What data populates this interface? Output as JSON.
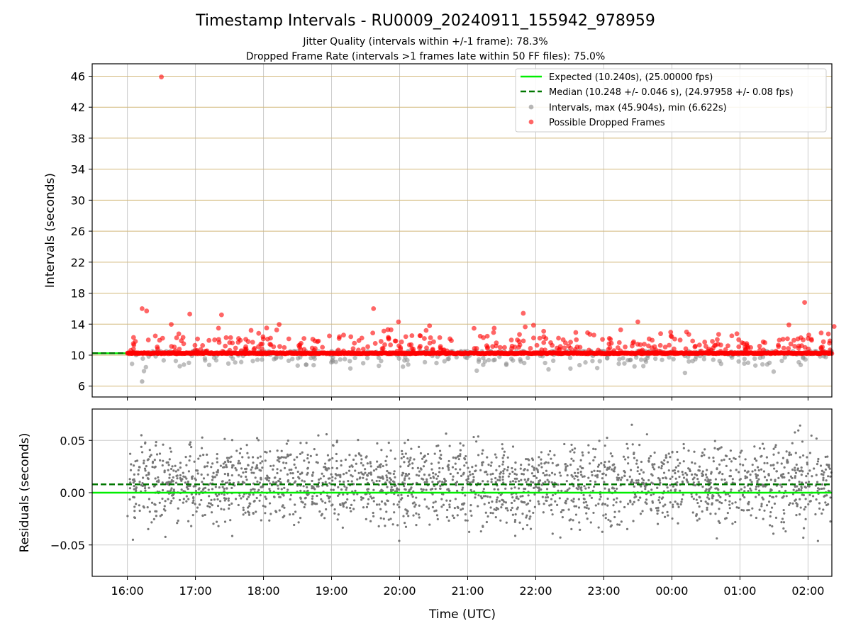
{
  "title": "Timestamp Intervals - RU0009_20240911_155942_978959",
  "subtitle_line1": "Jitter Quality (intervals within +/-1 frame): 78.3%",
  "subtitle_line2": "Dropped Frame Rate (intervals >1 frames late within 50 FF files): 75.0%",
  "colors": {
    "expected": "#00ee00",
    "median": "#007700",
    "intervals": "#888888",
    "dropped": "#ff0000",
    "hgrid_top": "#d2b87a",
    "grid": "#cccccc",
    "residuals": "#777777"
  },
  "chart_data": [
    {
      "type": "scatter",
      "panel": "top",
      "ylabel": "Intervals (seconds)",
      "ylim": [
        4.6,
        47.6
      ],
      "xlim": [
        "15:29",
        "02:21"
      ],
      "yticks": [
        "6",
        "10",
        "14",
        "18",
        "22",
        "26",
        "30",
        "34",
        "38",
        "42",
        "46"
      ],
      "grid": true,
      "legend_position": "top-right",
      "legend": {
        "expected": "Expected (10.240s), (25.00000 fps)",
        "median": "Median (10.248 +/- 0.046 s), (24.97958 +/- 0.08 fps)",
        "intervals": "Intervals, max (45.904s), min (6.622s)",
        "dropped": "Possible Dropped Frames"
      },
      "expected_value": 10.24,
      "median_value": 10.248,
      "max_interval": {
        "x": "16:30",
        "y": 45.9
      },
      "min_interval": {
        "x": "16:13",
        "y": 6.6
      },
      "notable_dropped_points": [
        {
          "x": "16:13",
          "y": 16.0
        },
        {
          "x": "16:17",
          "y": 15.7
        },
        {
          "x": "16:55",
          "y": 15.3
        },
        {
          "x": "17:23",
          "y": 15.2
        },
        {
          "x": "19:37",
          "y": 16.0
        },
        {
          "x": "19:59",
          "y": 14.3
        },
        {
          "x": "21:49",
          "y": 15.4
        },
        {
          "x": "23:30",
          "y": 14.3
        },
        {
          "x": "01:57",
          "y": 16.8
        },
        {
          "x": "02:23",
          "y": 13.7
        }
      ],
      "cluster_description": "dense band of intervals at ~10.24 s with scatter between 6.6 s and 16 s"
    },
    {
      "type": "scatter",
      "panel": "bottom",
      "xlabel": "Time (UTC)",
      "ylabel": "Residuals (seconds)",
      "ylim": [
        -0.08,
        0.08
      ],
      "yticks": [
        "−0.05",
        "0.00",
        "0.05"
      ],
      "xticks": [
        "16:00",
        "17:00",
        "18:00",
        "19:00",
        "20:00",
        "21:00",
        "22:00",
        "23:00",
        "00:00",
        "01:00",
        "02:00"
      ],
      "expected_value": 0.0,
      "median_value": 0.008,
      "grid": true,
      "residual_range": [
        -0.08,
        0.08
      ]
    }
  ]
}
